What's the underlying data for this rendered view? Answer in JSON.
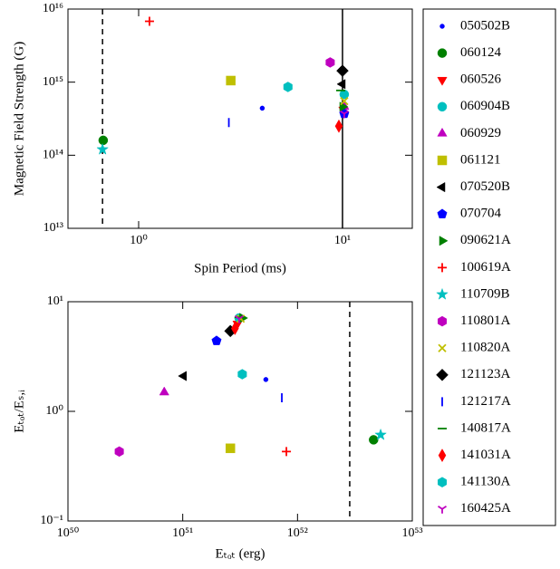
{
  "chart_data": [
    {
      "type": "scatter",
      "xlabel": "Spin Period (ms)",
      "ylabel": "Magnetic Field Strength (G)",
      "xscale": "log",
      "yscale": "log",
      "xlim": [
        0.45,
        22
      ],
      "ylim": [
        10000000000000.0,
        1e+16
      ],
      "xticks": [
        {
          "value": 1,
          "label": "10⁰"
        },
        {
          "value": 10,
          "label": "10¹"
        }
      ],
      "yticks": [
        {
          "value": 10000000000000.0,
          "label": "10¹³"
        },
        {
          "value": 100000000000000.0,
          "label": "10¹⁴"
        },
        {
          "value": 1000000000000000.0,
          "label": "10¹⁵"
        },
        {
          "value": 1e+16,
          "label": "10¹⁶"
        }
      ],
      "vlines": [
        {
          "x": 0.665,
          "style": "dashed"
        },
        {
          "x": 10,
          "style": "solid"
        }
      ],
      "series": [
        {
          "name": "050502B",
          "color": "#0000ff",
          "marker": "point",
          "x": 4.04,
          "y": 440000000000000.0
        },
        {
          "name": "060124",
          "color": "#008000",
          "marker": "circle",
          "x": 0.67,
          "y": 160000000000000.0
        },
        {
          "name": "060526",
          "color": "#ff0000",
          "marker": "tri_down",
          "x": 10.1,
          "y": 420000000000000.0
        },
        {
          "name": "060904B",
          "color": "#00bfbf",
          "marker": "circle",
          "x": 10.2,
          "y": 680000000000000.0
        },
        {
          "name": "060929",
          "color": "#bf00bf",
          "marker": "tri_up",
          "x": 10.2,
          "y": 460000000000000.0
        },
        {
          "name": "061121",
          "color": "#bfbf00",
          "marker": "square",
          "x": 2.83,
          "y": 1050000000000000.0
        },
        {
          "name": "070520B",
          "color": "#000000",
          "marker": "tri_left",
          "x": 10,
          "y": 940000000000000.0
        },
        {
          "name": "070704",
          "color": "#0000ff",
          "marker": "pentagon",
          "x": 10.2,
          "y": 370000000000000.0
        },
        {
          "name": "090621A",
          "color": "#008000",
          "marker": "tri_right",
          "x": 10,
          "y": 460000000000000.0
        },
        {
          "name": "100619A",
          "color": "#ff0000",
          "marker": "plus",
          "x": 1.13,
          "y": 6800000000000000.0
        },
        {
          "name": "110709B",
          "color": "#00bfbf",
          "marker": "star",
          "x": 0.665,
          "y": 120000000000000.0
        },
        {
          "name": "110801A",
          "color": "#bf00bf",
          "marker": "hexagon",
          "x": 8.7,
          "y": 1860000000000000.0
        },
        {
          "name": "110820A",
          "color": "#bfbf00",
          "marker": "x",
          "x": 10.2,
          "y": 550000000000000.0
        },
        {
          "name": "121123A",
          "color": "#000000",
          "marker": "diamond",
          "x": 10,
          "y": 1430000000000000.0
        },
        {
          "name": "121217A",
          "color": "#0000ff",
          "marker": "vline",
          "x": 2.77,
          "y": 280000000000000.0
        },
        {
          "name": "140817A",
          "color": "#008000",
          "marker": "hline",
          "x": 9.8,
          "y": 770000000000000.0
        },
        {
          "name": "141031A",
          "color": "#ff0000",
          "marker": "thin_diamond",
          "x": 9.6,
          "y": 250000000000000.0
        },
        {
          "name": "141130A",
          "color": "#00bfbf",
          "marker": "hexagon",
          "x": 5.4,
          "y": 860000000000000.0
        },
        {
          "name": "160425A",
          "color": "#bf00bf",
          "marker": "tri_y",
          "x": 10.2,
          "y": 370000000000000.0
        }
      ]
    },
    {
      "type": "scatter",
      "xlabel": "Eₜₒₜ (erg)",
      "ylabel": "Eₜₒₜ/Eₛ,ᵢ",
      "xscale": "log",
      "yscale": "log",
      "xlim": [
        1e+50,
        1e+53
      ],
      "ylim": [
        0.1,
        10
      ],
      "xticks": [
        {
          "value": 1e+50,
          "label": "10⁵⁰"
        },
        {
          "value": 1e+51,
          "label": "10⁵¹"
        },
        {
          "value": 1e+52,
          "label": "10⁵²"
        },
        {
          "value": 1e+53,
          "label": "10⁵³"
        }
      ],
      "yticks": [
        {
          "value": 0.1,
          "label": "10⁻¹"
        },
        {
          "value": 1,
          "label": "10⁰"
        },
        {
          "value": 10,
          "label": "10¹"
        }
      ],
      "vlines": [
        {
          "x": 2.85e+52,
          "style": "dashed"
        }
      ],
      "series": [
        {
          "color": "#0000ff",
          "marker": "point",
          "x": 5.3e+51,
          "y": 1.95
        },
        {
          "color": "#008000",
          "marker": "circle",
          "x": 4.6e+52,
          "y": 0.55
        },
        {
          "color": "#ff0000",
          "marker": "tri_down",
          "x": 3e+51,
          "y": 6.3
        },
        {
          "color": "#00bfbf",
          "marker": "circle",
          "x": 3.1e+51,
          "y": 7.1
        },
        {
          "color": "#bf00bf",
          "marker": "tri_up",
          "x": 6.9e+50,
          "y": 1.49
        },
        {
          "color": "#bfbf00",
          "marker": "square",
          "x": 2.6e+51,
          "y": 0.46
        },
        {
          "color": "#000000",
          "marker": "tri_left",
          "x": 1.02e+51,
          "y": 2.1
        },
        {
          "color": "#0000ff",
          "marker": "pentagon",
          "x": 1.97e+51,
          "y": 4.4
        },
        {
          "color": "#008000",
          "marker": "tri_right",
          "x": 3.3e+51,
          "y": 7.1
        },
        {
          "color": "#ff0000",
          "marker": "plus",
          "x": 8e+51,
          "y": 0.43
        },
        {
          "color": "#00bfbf",
          "marker": "star",
          "x": 5.3e+52,
          "y": 0.61
        },
        {
          "color": "#bf00bf",
          "marker": "hexagon",
          "x": 2.8e+50,
          "y": 0.43
        },
        {
          "color": "#bfbf00",
          "marker": "x",
          "x": 3.2e+51,
          "y": 7.0
        },
        {
          "color": "#000000",
          "marker": "diamond",
          "x": 2.6e+51,
          "y": 5.4
        },
        {
          "color": "#0000ff",
          "marker": "vline",
          "x": 7.3e+51,
          "y": 1.33
        },
        {
          "color": "#008000",
          "marker": "hline",
          "x": 3.1e+51,
          "y": 7.2
        },
        {
          "color": "#ff0000",
          "marker": "thin_diamond",
          "x": 2.85e+51,
          "y": 5.7
        },
        {
          "color": "#00bfbf",
          "marker": "hexagon",
          "x": 3.3e+51,
          "y": 2.18
        },
        {
          "color": "#bf00bf",
          "marker": "tri_y",
          "x": 3.1e+51,
          "y": 7.0
        }
      ]
    }
  ]
}
